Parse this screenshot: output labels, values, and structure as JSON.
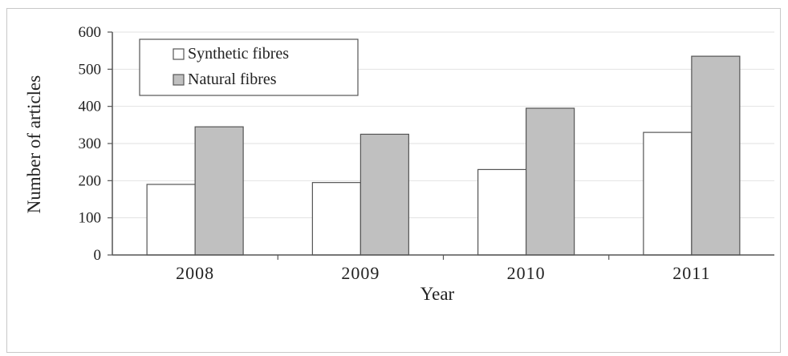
{
  "chart_data": {
    "type": "bar",
    "title": "",
    "xlabel": "Year",
    "ylabel": "Number of articles",
    "categories": [
      "2008",
      "2009",
      "2010",
      "2011"
    ],
    "series": [
      {
        "name": "Synthetic fibres",
        "values": [
          190,
          195,
          230,
          330
        ],
        "color": "#ffffff"
      },
      {
        "name": "Natural fibres",
        "values": [
          345,
          325,
          395,
          535
        ],
        "color": "#c0c0c0"
      }
    ],
    "ylim": [
      0,
      600
    ],
    "yticks": [
      "0",
      "100",
      "200",
      "300",
      "400",
      "500",
      "600"
    ],
    "grid": true,
    "legend_position": "top-left"
  }
}
